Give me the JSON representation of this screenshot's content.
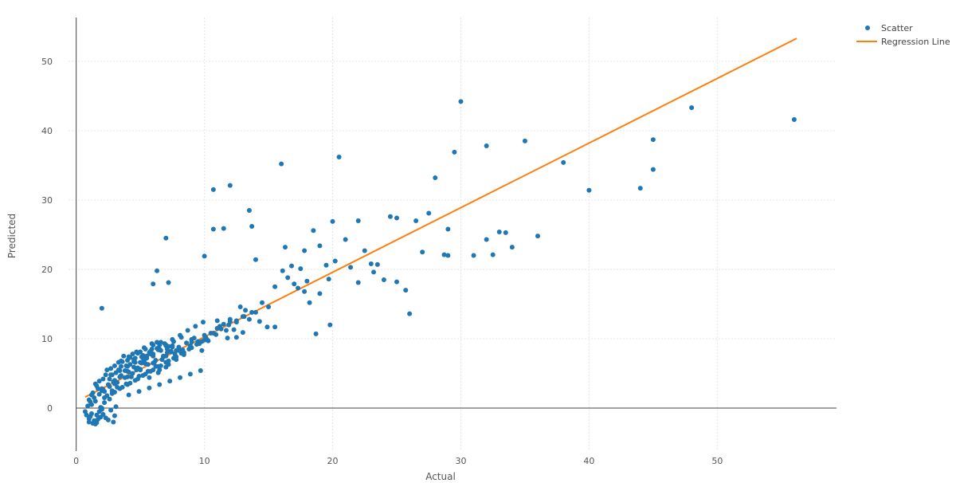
{
  "chart_data": {
    "type": "scatter",
    "xlabel": "Actual",
    "ylabel": "Predicted",
    "xlim": [
      -0.6,
      59.3
    ],
    "ylim": [
      -6.2,
      56.3
    ],
    "x_ticks": [
      0,
      10,
      20,
      30,
      40,
      50
    ],
    "y_ticks": [
      0,
      10,
      20,
      30,
      40,
      50
    ],
    "grid": true,
    "legend_position": "top-right",
    "colors": {
      "scatter": "#1f77b4",
      "regression": "#ff7f0e",
      "grid": "#e6e6e6",
      "axis": "#444444"
    },
    "series": [
      {
        "name": "Scatter",
        "mode": "markers",
        "x": [
          0.7,
          0.8,
          0.9,
          1,
          1,
          1.1,
          1.2,
          1.3,
          1.4,
          1.5,
          1.6,
          1.6,
          1.7,
          1.8,
          1.9,
          2,
          2.1,
          2.3,
          2.5,
          2.7,
          2.9,
          3,
          3.1,
          1.2,
          1.5,
          1.9,
          2.2,
          2.6,
          1.1,
          1.4,
          1.8,
          2,
          1.3,
          1.7,
          2.4,
          2.8,
          3.2,
          1.2,
          1.6,
          2.1,
          1,
          1.5,
          2.2,
          2.9,
          1.8,
          2.6,
          3.4,
          2.3,
          3.1,
          3.8,
          2.7,
          3.5,
          4.2,
          3.3,
          4,
          4.6,
          3.7,
          4.4,
          5,
          4.1,
          4.8,
          5.4,
          4.5,
          5.2,
          5.8,
          4.9,
          5.6,
          6.2,
          5.3,
          6,
          6.6,
          5.7,
          6.4,
          7,
          6.1,
          6.8,
          7.4,
          6.5,
          7.2,
          7.8,
          2,
          2.5,
          3,
          3.5,
          4,
          4.5,
          5,
          5.5,
          6,
          6.5,
          7,
          7.5,
          8,
          2.2,
          2.8,
          3.4,
          4,
          4.6,
          5.2,
          5.8,
          6.4,
          7,
          7.6,
          8.2,
          8.8,
          9.4,
          10,
          2.6,
          3.2,
          3.8,
          4.4,
          5,
          5.6,
          6.2,
          6.8,
          7.4,
          8,
          8.6,
          9.2,
          9.8,
          3,
          3.6,
          4.2,
          4.8,
          5.4,
          6,
          6.6,
          7.2,
          7.8,
          8.4,
          9,
          9.6,
          10.2,
          2.1,
          2.7,
          3.3,
          3.9,
          4.5,
          5.1,
          5.7,
          6.3,
          6.9,
          7.5,
          8.1,
          8.7,
          9.3,
          9.9,
          10.5,
          11,
          11.5,
          12,
          12.5,
          13,
          3.5,
          4.1,
          4.7,
          5.3,
          5.9,
          6.5,
          7.1,
          7.7,
          8.3,
          8.9,
          9.5,
          10.1,
          10.7,
          11.3,
          11.9,
          12.5,
          13.1,
          13.7,
          14.3,
          14.9,
          2.4,
          3,
          3.6,
          4.2,
          4.8,
          5.4,
          6,
          6.6,
          7.2,
          7.8,
          8.4,
          9,
          2.8,
          3.4,
          4,
          4.6,
          5.2,
          5.8,
          6.4,
          7,
          7.6,
          8.2,
          3.9,
          4.3,
          4.7,
          5.1,
          5.5,
          5.9,
          6.3,
          6.7,
          7.1,
          7.5,
          4.1,
          4.9,
          5.7,
          6.5,
          7.3,
          8.1,
          8.9,
          9.7,
          2,
          3,
          4,
          5,
          6,
          7,
          8,
          9,
          10,
          11,
          12,
          2,
          7,
          6.3,
          6,
          7.2,
          10,
          10.7,
          10.7,
          11.5,
          12,
          13.5,
          13.7,
          16,
          20.5,
          14,
          15.5,
          15,
          16.3,
          16.8,
          17.5,
          17.8,
          18,
          18.5,
          19,
          19.5,
          20,
          21,
          22,
          22.5,
          23,
          23.5,
          24.5,
          25,
          26.5,
          27.5,
          28,
          29,
          29.5,
          30,
          32,
          32.5,
          33,
          33.5,
          34,
          35,
          36,
          38,
          40,
          44,
          45,
          45,
          48,
          56,
          16.1,
          16.5,
          17,
          17.3,
          17.8,
          18.2,
          19,
          19.7,
          20.2,
          21.4,
          22,
          23.2,
          24,
          25,
          25.7,
          26,
          27,
          28.7,
          29,
          31,
          32,
          18.7,
          19.8,
          14.5,
          15.5,
          12.3,
          13,
          13.5,
          11.8,
          12.5,
          10.9,
          11.2,
          9.8,
          10.3,
          13.2,
          14,
          11,
          11.7,
          12.8
        ],
        "y": [
          -0.5,
          -1,
          0.3,
          -1.5,
          -2,
          -1.2,
          -0.8,
          -2.2,
          -1.8,
          -2.3,
          -1,
          -2.1,
          -1.6,
          -0.5,
          -1.3,
          0,
          -0.9,
          -1.4,
          -1.7,
          -0.3,
          -2,
          -1.1,
          0.2,
          0.5,
          1,
          0.1,
          0.8,
          1.3,
          0.9,
          1.5,
          2,
          -0.2,
          2.2,
          2.8,
          1.8,
          2.5,
          3,
          1.9,
          3.2,
          2.7,
          1.2,
          3.5,
          2.4,
          3.8,
          3.9,
          4.2,
          4.5,
          4.8,
          5.1,
          5.4,
          5.7,
          6,
          6.3,
          6.6,
          6.9,
          7.2,
          7.5,
          7.8,
          8.1,
          5.2,
          5.8,
          6.4,
          7,
          7.6,
          8.2,
          4.6,
          5.3,
          6,
          6.8,
          7.5,
          8.3,
          4.4,
          5.1,
          5.9,
          6.6,
          7.4,
          8.1,
          5.5,
          6.3,
          7,
          2.8,
          3.4,
          4,
          4.7,
          5.3,
          5.9,
          6.6,
          7.2,
          7.8,
          8.5,
          9.1,
          8.8,
          8.3,
          1.5,
          2.1,
          2.8,
          3.4,
          4,
          4.7,
          5.3,
          6,
          6.6,
          7.2,
          7.9,
          8.5,
          9.2,
          9.8,
          3.1,
          3.7,
          4.4,
          5,
          5.6,
          6.3,
          6.9,
          7.5,
          8.2,
          8.8,
          9.4,
          10.1,
          9.6,
          2.3,
          3,
          3.6,
          4.2,
          4.9,
          5.5,
          6.1,
          6.8,
          7.4,
          8,
          8.7,
          9.3,
          9.9,
          4.2,
          4.8,
          5.5,
          6.1,
          6.7,
          7.4,
          8,
          8.6,
          9.3,
          9.9,
          10.5,
          11.2,
          11.8,
          12.4,
          10.8,
          11.5,
          12.1,
          12.8,
          10.2,
          10.9,
          6.8,
          7.4,
          8.1,
          8.7,
          9.3,
          9.1,
          8.5,
          7.8,
          8.4,
          9,
          9.6,
          10.2,
          10.8,
          11.4,
          12,
          12.6,
          13.2,
          13.8,
          12.5,
          11.7,
          5.5,
          6.1,
          6.7,
          7.3,
          7.9,
          8.5,
          9.1,
          9.5,
          8.9,
          8.3,
          7.7,
          9.9,
          4.8,
          5.4,
          6,
          6.6,
          7.2,
          7.8,
          8.4,
          9,
          9.6,
          10.2,
          3.5,
          4.5,
          5.5,
          6.5,
          7.5,
          8.5,
          9.5,
          7,
          8,
          9,
          1.9,
          2.4,
          2.9,
          3.4,
          3.9,
          4.4,
          4.9,
          5.4,
          2.5,
          3.5,
          4.5,
          5.5,
          6.5,
          7.5,
          8.5,
          9.5,
          10.5,
          11.5,
          12.5,
          14.4,
          24.5,
          19.8,
          17.9,
          18.1,
          21.9,
          31.5,
          25.8,
          25.9,
          32.1,
          28.5,
          26.2,
          35.2,
          36.2,
          21.4,
          17.5,
          14.6,
          23.2,
          20.5,
          20.1,
          22.7,
          18.3,
          25.6,
          23.4,
          20.6,
          26.9,
          24.3,
          27,
          22.7,
          20.8,
          20.7,
          27.6,
          27.4,
          27,
          28.1,
          33.2,
          25.8,
          36.9,
          44.2,
          37.8,
          22.1,
          25.4,
          25.3,
          23.2,
          38.5,
          24.8,
          35.4,
          31.4,
          31.7,
          38.7,
          34.4,
          43.3,
          41.6,
          19.8,
          18.8,
          17.9,
          17.3,
          16.8,
          15.2,
          16.5,
          18.6,
          21.2,
          20.3,
          18.1,
          19.6,
          18.5,
          18.2,
          17,
          13.6,
          22.5,
          22.1,
          22,
          22,
          24.3,
          10.7,
          12,
          15.2,
          11.7,
          11.3,
          13.2,
          12.8,
          10.1,
          12.4,
          10.6,
          11.8,
          8.3,
          9.7,
          14.1,
          13.8,
          12.6,
          11.2,
          14.6
        ]
      },
      {
        "name": "Regression Line",
        "mode": "line",
        "x": [
          0.7,
          56.2
        ],
        "y": [
          1.6,
          53.3
        ]
      }
    ]
  }
}
